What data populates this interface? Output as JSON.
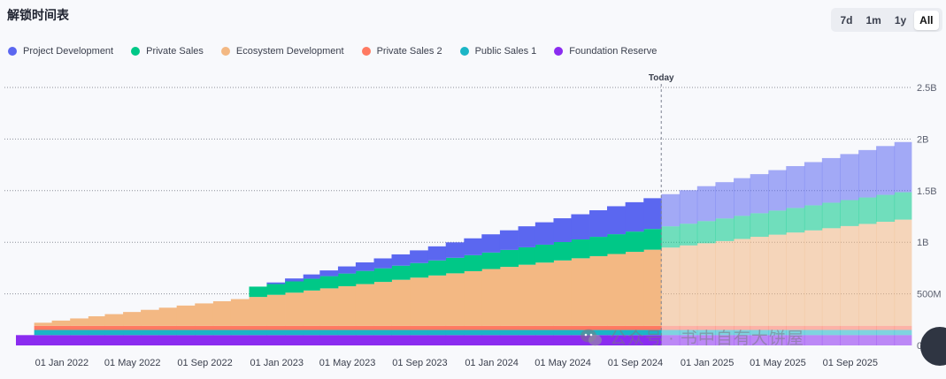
{
  "header": {
    "title": "解锁时间表",
    "ranges": [
      "7d",
      "1m",
      "1y",
      "All"
    ],
    "active_range": "All"
  },
  "legend": [
    {
      "name": "Project Development",
      "color": "#5b67f0"
    },
    {
      "name": "Private Sales",
      "color": "#00c887"
    },
    {
      "name": "Ecosystem Development",
      "color": "#f3b883"
    },
    {
      "name": "Private Sales 2",
      "color": "#ff7a62"
    },
    {
      "name": "Public Sales 1",
      "color": "#1bb5c6"
    },
    {
      "name": "Foundation Reserve",
      "color": "#8b2cf0"
    }
  ],
  "today_label": "Today",
  "watermark": {
    "text": "公众号 · 书中自有大饼屋",
    "icon": "wechat-icon"
  },
  "chart_data": {
    "type": "area",
    "step": true,
    "x_tick_labels": [
      "01 Jan 2022",
      "01 May 2022",
      "01 Sep 2022",
      "01 Jan 2023",
      "01 May 2023",
      "01 Sep 2023",
      "01 Jan 2024",
      "01 May 2024",
      "01 Sep 2024",
      "01 Jan 2025",
      "01 May 2025",
      "01 Sep 2025"
    ],
    "x_range": [
      "2021-10-15",
      "2025-12-14"
    ],
    "y_ticks": [
      0,
      500000000,
      1000000000,
      1500000000,
      2000000000,
      2500000000
    ],
    "y_tick_labels": [
      "0",
      "500M",
      "1B",
      "1.5B",
      "2B",
      "2.5B"
    ],
    "ylim": [
      0,
      2500000000
    ],
    "today": "2024-10-15",
    "grid": true,
    "grid_style": "dotted-horizontal",
    "y_axis_position": "right",
    "legend_position": "top-left",
    "stack_order": [
      "Foundation Reserve",
      "Public Sales 1",
      "Private Sales 2",
      "Ecosystem Development",
      "Private Sales",
      "Project Development"
    ],
    "series": [
      {
        "name": "Foundation Reserve",
        "color": "#8b2cf0",
        "unlocks": [
          {
            "start": "2021-10-15",
            "end": "2025-12-14",
            "value": 100000000
          }
        ]
      },
      {
        "name": "Public Sales 1",
        "color": "#1bb5c6",
        "unlocks": [
          {
            "start": "2021-11-15",
            "end": "2025-12-14",
            "value": 50000000
          }
        ]
      },
      {
        "name": "Private Sales 2",
        "color": "#ff7a62",
        "unlocks": [
          {
            "start": "2021-11-15",
            "end": "2025-12-14",
            "value": 40000000
          }
        ]
      },
      {
        "name": "Ecosystem Development",
        "color": "#f3b883",
        "monthly": {
          "start": "2021-11-15",
          "end": "2025-12-14",
          "start_value": 0,
          "end_value": 1050000000,
          "initial_step": 30000000
        }
      },
      {
        "name": "Private Sales",
        "color": "#00c887",
        "monthly": {
          "start": "2022-11-15",
          "end": "2025-12-14",
          "start_value": 100000000,
          "end_value": 270000000
        }
      },
      {
        "name": "Project Development",
        "color": "#5b67f0",
        "monthly": {
          "start": "2022-12-15",
          "end": "2025-12-14",
          "start_value": 15000000,
          "end_value": 500000000
        }
      }
    ]
  }
}
